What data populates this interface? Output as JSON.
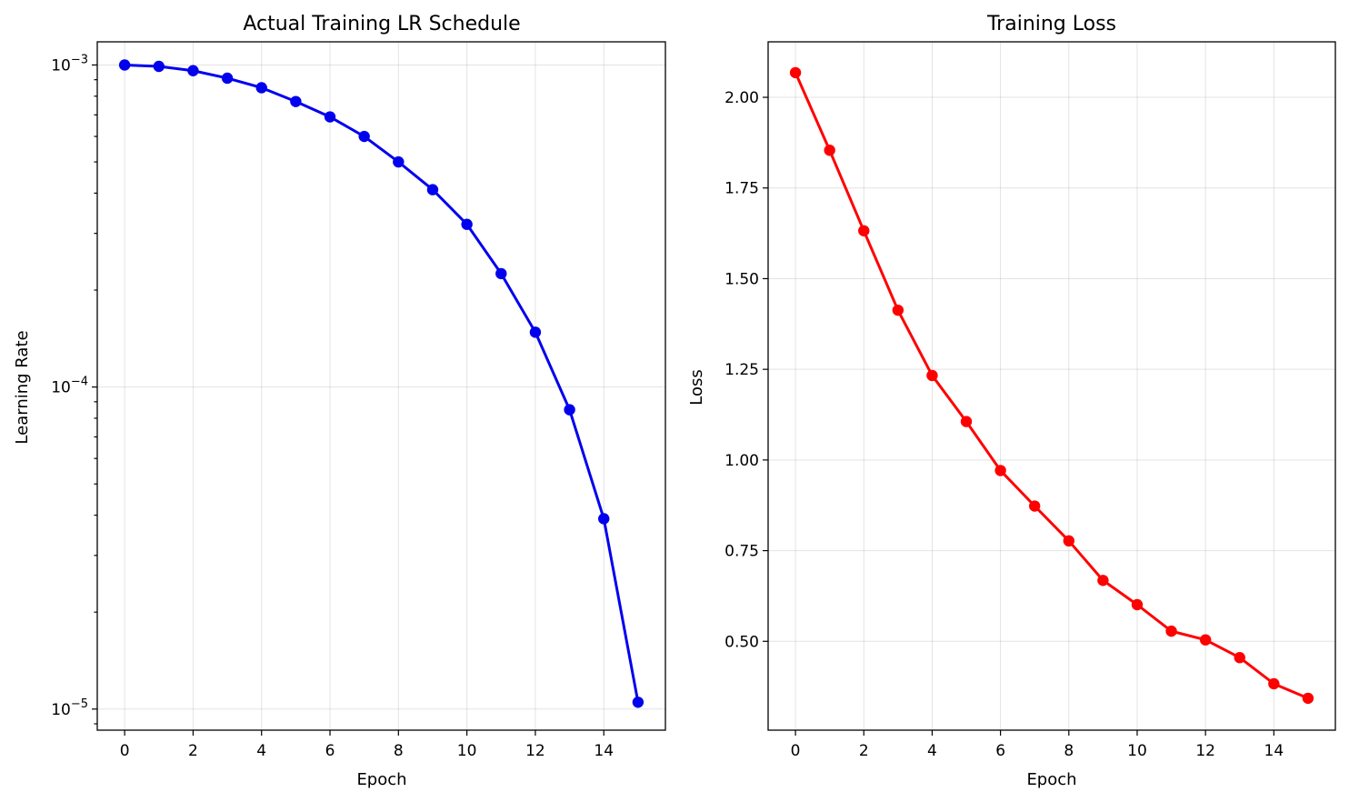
{
  "chart_data": [
    {
      "type": "line",
      "title": "Actual Training LR Schedule",
      "xlabel": "Epoch",
      "ylabel": "Learning Rate",
      "yscale": "log",
      "color": "#0000ee",
      "marker": "circle",
      "grid": true,
      "xlim": [
        -0.8,
        15.8
      ],
      "ylim": [
        8.6e-06,
        0.00118
      ],
      "xticks": [
        0,
        2,
        4,
        6,
        8,
        10,
        12,
        14
      ],
      "yticks": [
        {
          "value": 0.001,
          "base": "10",
          "exp": "−3"
        },
        {
          "value": 0.0001,
          "base": "10",
          "exp": "−4"
        },
        {
          "value": 1e-05,
          "base": "10",
          "exp": "−5"
        }
      ],
      "series": [
        {
          "x": [
            0,
            1,
            2,
            3,
            4,
            5,
            6,
            7,
            8,
            9,
            10,
            11,
            12,
            13,
            14,
            15
          ],
          "y": [
            0.001,
            0.00099,
            0.00096,
            0.00091,
            0.00085,
            0.00077,
            0.00069,
            0.0006,
            0.0005,
            0.00041,
            0.00032,
            0.000225,
            0.000148,
            8.5e-05,
            3.9e-05,
            1.05e-05
          ]
        }
      ]
    },
    {
      "type": "line",
      "title": "Training Loss",
      "xlabel": "Epoch",
      "ylabel": "Loss",
      "yscale": "linear",
      "color": "#ff0000",
      "marker": "circle",
      "grid": true,
      "xlim": [
        -0.8,
        15.8
      ],
      "ylim": [
        0.255,
        2.153
      ],
      "xticks": [
        0,
        2,
        4,
        6,
        8,
        10,
        12,
        14
      ],
      "yticks": [
        {
          "value": 0.5,
          "label": "0.50"
        },
        {
          "value": 0.75,
          "label": "0.75"
        },
        {
          "value": 1.0,
          "label": "1.00"
        },
        {
          "value": 1.25,
          "label": "1.25"
        },
        {
          "value": 1.5,
          "label": "1.50"
        },
        {
          "value": 1.75,
          "label": "1.75"
        },
        {
          "value": 2.0,
          "label": "2.00"
        }
      ],
      "series": [
        {
          "x": [
            0,
            1,
            2,
            3,
            4,
            5,
            6,
            7,
            8,
            9,
            10,
            11,
            12,
            13,
            14,
            15
          ],
          "y": [
            2.068,
            1.854,
            1.632,
            1.413,
            1.233,
            1.106,
            0.971,
            0.873,
            0.777,
            0.668,
            0.601,
            0.528,
            0.504,
            0.455,
            0.383,
            0.343
          ]
        }
      ]
    }
  ]
}
